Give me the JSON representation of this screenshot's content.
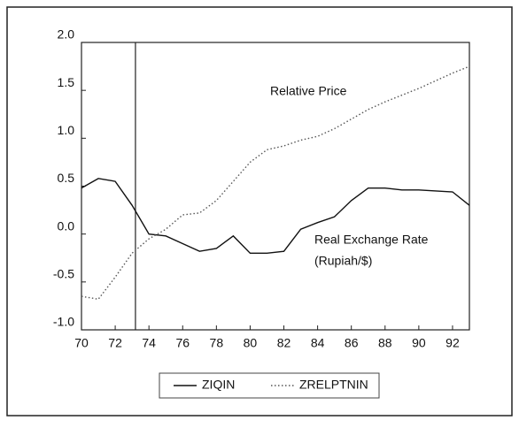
{
  "chart_data": {
    "type": "line",
    "x": [
      70,
      71,
      72,
      73,
      74,
      75,
      76,
      77,
      78,
      79,
      80,
      81,
      82,
      83,
      84,
      85,
      86,
      87,
      88,
      89,
      90,
      91,
      92,
      93
    ],
    "series": [
      {
        "name": "ZIQIN",
        "color": "#111111",
        "style": "solid",
        "values": [
          0.48,
          0.58,
          0.55,
          0.3,
          0.0,
          -0.02,
          -0.1,
          -0.18,
          -0.15,
          -0.02,
          -0.2,
          -0.2,
          -0.18,
          0.05,
          0.12,
          0.18,
          0.35,
          0.48,
          0.48,
          0.46,
          0.46,
          0.45,
          0.44,
          0.3
        ]
      },
      {
        "name": "ZRELPTNIN",
        "color": "#555555",
        "style": "dotted",
        "values": [
          -0.65,
          -0.68,
          -0.45,
          -0.2,
          -0.05,
          0.05,
          0.2,
          0.22,
          0.35,
          0.55,
          0.75,
          0.88,
          0.92,
          0.98,
          1.02,
          1.1,
          1.2,
          1.3,
          1.38,
          1.45,
          1.52,
          1.6,
          1.68,
          1.75
        ]
      }
    ],
    "xlim": [
      70,
      93
    ],
    "xticks": [
      70,
      72,
      74,
      76,
      78,
      80,
      82,
      84,
      86,
      88,
      90,
      92
    ],
    "ylim": [
      -1,
      2
    ],
    "yticks": [
      {
        "value": -1,
        "label": "-1.0"
      },
      {
        "value": -0.5,
        "label": "-0.5"
      },
      {
        "value": 0,
        "label": "0.0"
      },
      {
        "value": 0.5,
        "label": "0.5"
      },
      {
        "value": 1,
        "label": "1.0"
      },
      {
        "value": 1.5,
        "label": "1.5"
      },
      {
        "value": 2,
        "label": "2.0"
      }
    ],
    "vlines": [
      73.2
    ],
    "annotations": [
      "Relative Price",
      "Real Exchange Rate",
      "(Rupiah/$)"
    ],
    "legend": "bottom"
  }
}
